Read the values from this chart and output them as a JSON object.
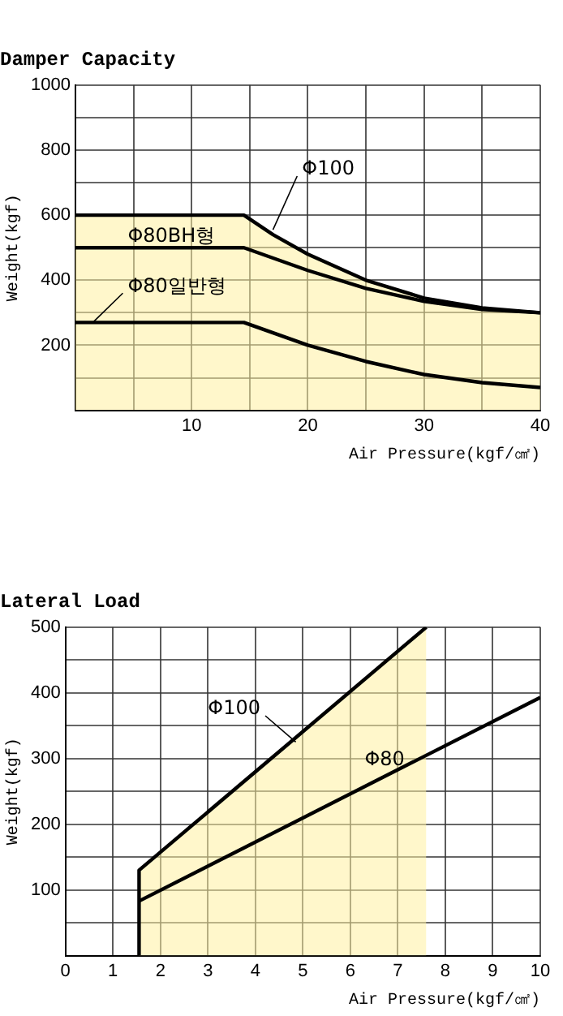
{
  "chart_data": [
    {
      "type": "line",
      "title": "Damper Capacity",
      "xlabel": "Air Pressure(kgf/㎠)",
      "ylabel": "Weight(kgf)",
      "xlim": [
        0,
        40
      ],
      "ylim": [
        0,
        1000
      ],
      "xticks": [
        {
          "value": 0,
          "label": null
        },
        {
          "value": 5,
          "label": null
        },
        10,
        {
          "value": 15,
          "label": null
        },
        20,
        {
          "value": 25,
          "label": null
        },
        30,
        {
          "value": 35,
          "label": null
        },
        40
      ],
      "yticks": [
        {
          "value": 0,
          "label": null
        },
        {
          "value": 100,
          "label": null
        },
        200,
        {
          "value": 300,
          "label": null
        },
        400,
        {
          "value": 500,
          "label": null
        },
        600,
        {
          "value": 700,
          "label": null
        },
        800,
        {
          "value": 900,
          "label": null
        },
        1000
      ],
      "grid": true,
      "legend": false,
      "marker": "none",
      "line_style": "solid",
      "series": [
        {
          "name": "Φ100",
          "type": "area",
          "color": "#000000",
          "x": [
            0,
            14.5,
            17,
            20,
            25,
            30,
            35,
            40
          ],
          "values": [
            600,
            600,
            540,
            480,
            400,
            345,
            315,
            300
          ]
        },
        {
          "name": "Φ80BH형",
          "color": "#000000",
          "x": [
            0,
            14.5,
            20,
            25,
            30,
            35,
            40
          ],
          "values": [
            500,
            500,
            430,
            375,
            335,
            310,
            300
          ]
        },
        {
          "name": "Φ80일반형",
          "color": "#000000",
          "x": [
            0,
            14.5,
            20,
            25,
            30,
            35,
            40
          ],
          "values": [
            270,
            270,
            200,
            150,
            110,
            85,
            70
          ]
        }
      ]
    },
    {
      "type": "line",
      "title": "Lateral Load",
      "xlabel": "Air Pressure(kgf/㎠)",
      "ylabel": "Weight(kgf)",
      "xlim": [
        0,
        10
      ],
      "ylim": [
        0,
        500
      ],
      "xticks": [
        0,
        1,
        2,
        3,
        4,
        5,
        6,
        7,
        8,
        9,
        10
      ],
      "yticks": [
        {
          "value": 0,
          "label": null
        },
        {
          "value": 50,
          "label": null
        },
        100,
        {
          "value": 150,
          "label": null
        },
        200,
        {
          "value": 250,
          "label": null
        },
        300,
        {
          "value": 350,
          "label": null
        },
        400,
        {
          "value": 450,
          "label": null
        },
        500
      ],
      "grid": true,
      "legend": false,
      "marker": "none",
      "line_style": "solid",
      "series": [
        {
          "name": "Φ100",
          "type": "area",
          "color": "#000000",
          "x": [
            1.55,
            1.55,
            7.6
          ],
          "values": [
            0,
            130,
            500
          ]
        },
        {
          "name": "Φ80",
          "color": "#000000",
          "x": [
            1.55,
            10
          ],
          "values": [
            83,
            393
          ]
        }
      ]
    }
  ]
}
